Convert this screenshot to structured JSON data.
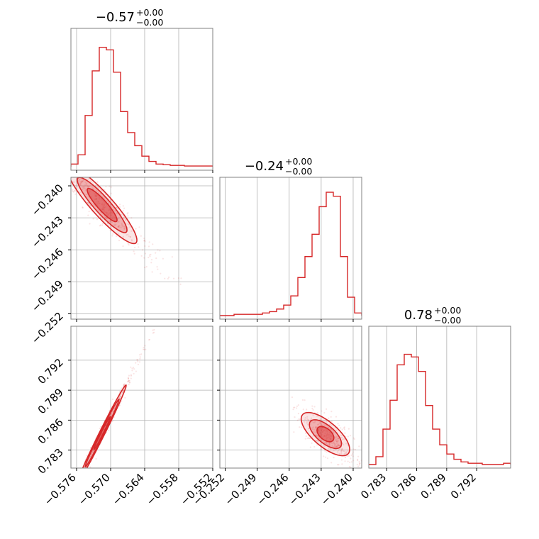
{
  "colors": {
    "accent": "#d62728",
    "grid": "#b0b0b0",
    "axis": "#808080"
  },
  "chart_data": {
    "type": "corner",
    "parameters": [
      {
        "title": "−0.57",
        "err_plus": "+0.00",
        "err_minus": "−0.00",
        "ticks": [
          -0.576,
          -0.57,
          -0.564,
          -0.558,
          -0.552
        ],
        "tick_labels": [
          "−0.576",
          "−0.570",
          "−0.564",
          "−0.558",
          "−0.552"
        ],
        "range": [
          -0.577,
          -0.552
        ]
      },
      {
        "title": "−0.24",
        "err_plus": "+0.00",
        "err_minus": "−0.00",
        "ticks": [
          -0.252,
          -0.249,
          -0.246,
          -0.243,
          -0.24
        ],
        "tick_labels": [
          "−0.252",
          "−0.249",
          "−0.246",
          "−0.243",
          "−0.240"
        ],
        "range": [
          -0.2525,
          -0.2392
        ]
      },
      {
        "title": "0.78",
        "err_plus": "+0.00",
        "err_minus": "−0.00",
        "ticks": [
          0.783,
          0.786,
          0.789,
          0.792
        ],
        "tick_labels": [
          "0.783",
          "0.786",
          "0.789",
          "0.792"
        ],
        "range": [
          0.7812,
          0.7954
        ]
      }
    ],
    "histograms": [
      {
        "edges_start": -0.577,
        "bin_width": 0.00125,
        "counts": [
          0.02,
          0.09,
          0.39,
          0.73,
          0.91,
          0.89,
          0.72,
          0.42,
          0.26,
          0.16,
          0.08,
          0.04,
          0.02,
          0.015,
          0.01,
          0.01,
          0.005,
          0.005,
          0.005,
          0.005
        ]
      },
      {
        "edges_start": -0.2525,
        "bin_width": 0.000665,
        "counts": [
          0.0,
          0.0,
          0.01,
          0.01,
          0.01,
          0.01,
          0.02,
          0.03,
          0.05,
          0.08,
          0.15,
          0.29,
          0.45,
          0.62,
          0.83,
          0.94,
          0.91,
          0.45,
          0.14,
          0.02
        ]
      },
      {
        "edges_start": 0.7812,
        "bin_width": 0.00071,
        "counts": [
          0.0,
          0.06,
          0.27,
          0.49,
          0.76,
          0.84,
          0.82,
          0.71,
          0.45,
          0.27,
          0.15,
          0.08,
          0.04,
          0.02,
          0.01,
          0.01,
          0.0,
          0.0,
          0.0,
          0.01
        ]
      }
    ],
    "pairs": [
      {
        "x_param": 0,
        "y_param": 1,
        "center": [
          -0.5715,
          -0.2418
        ],
        "angle_dir": [
          0.87,
          -0.49
        ],
        "contours": [
          [
            0.003,
            0.00058
          ],
          [
            0.005,
            0.00095
          ],
          [
            0.007,
            0.0013
          ]
        ]
      },
      {
        "x_param": 0,
        "y_param": 2,
        "center": [
          -0.5715,
          0.7847
        ],
        "angle_dir": [
          0.66,
          0.75
        ],
        "contours": [
          [
            0.0022,
            0.00016
          ],
          [
            0.0045,
            0.00028
          ],
          [
            0.0064,
            0.0004
          ]
        ]
      },
      {
        "x_param": 1,
        "y_param": 2,
        "center": [
          -0.2426,
          0.7846
        ],
        "angle_dir": [
          0.73,
          -0.68
        ],
        "contours": [
          [
            0.00095,
            0.00055
          ],
          [
            0.0019,
            0.00085
          ],
          [
            0.0029,
            0.0012
          ]
        ]
      }
    ]
  }
}
